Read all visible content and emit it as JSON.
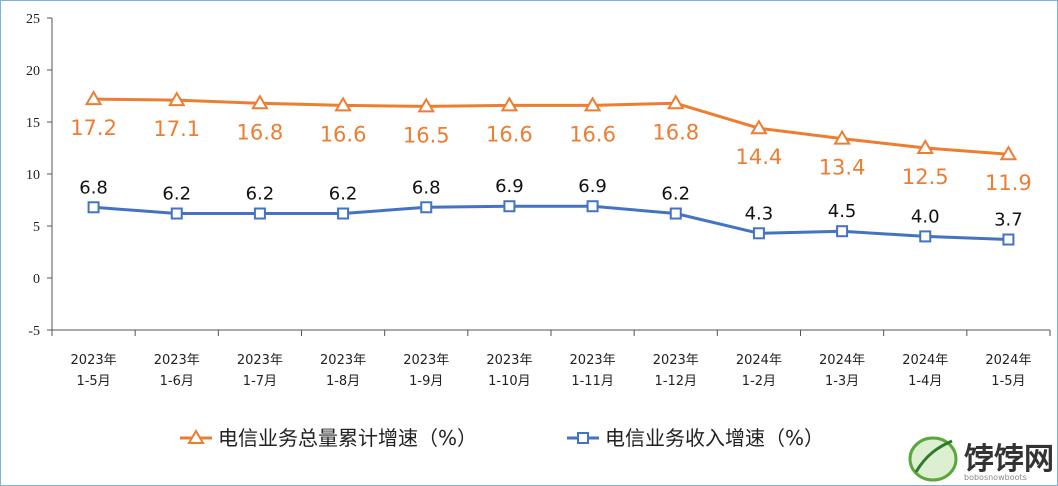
{
  "chart_data": {
    "type": "line",
    "categories": [
      [
        "2023年",
        "1-5月"
      ],
      [
        "2023年",
        "1-6月"
      ],
      [
        "2023年",
        "1-7月"
      ],
      [
        "2023年",
        "1-8月"
      ],
      [
        "2023年",
        "1-9月"
      ],
      [
        "2023年",
        "1-10月"
      ],
      [
        "2023年",
        "1-11月"
      ],
      [
        "2023年",
        "1-12月"
      ],
      [
        "2024年",
        "1-2月"
      ],
      [
        "2024年",
        "1-3月"
      ],
      [
        "2024年",
        "1-4月"
      ],
      [
        "2024年",
        "1-5月"
      ]
    ],
    "series": [
      {
        "name": "电信业务总量累计增速（%）",
        "values": [
          17.2,
          17.1,
          16.8,
          16.6,
          16.5,
          16.6,
          16.6,
          16.8,
          14.4,
          13.4,
          12.5,
          11.9
        ],
        "labels": [
          "17.2",
          "17.1",
          "16.8",
          "16.6",
          "16.5",
          "16.6",
          "16.6",
          "16.8",
          "14.4",
          "13.4",
          "12.5",
          "11.9"
        ],
        "color": "#ed7d31",
        "marker": "triangle"
      },
      {
        "name": "电信业务收入增速（%）",
        "values": [
          6.8,
          6.2,
          6.2,
          6.2,
          6.8,
          6.9,
          6.9,
          6.2,
          4.3,
          4.5,
          4.0,
          3.7
        ],
        "labels": [
          "6.8",
          "6.2",
          "6.2",
          "6.2",
          "6.8",
          "6.9",
          "6.9",
          "6.2",
          "4.3",
          "4.5",
          "4.0",
          "3.7"
        ],
        "color": "#4472c4",
        "marker": "square"
      }
    ],
    "ylim": [
      -5,
      25
    ],
    "yticks": [
      -5,
      0,
      5,
      10,
      15,
      20,
      25
    ],
    "grid": false,
    "legend": "bottom"
  },
  "watermark": {
    "text": "饽饽网",
    "subtext": "bobosnowboots"
  }
}
